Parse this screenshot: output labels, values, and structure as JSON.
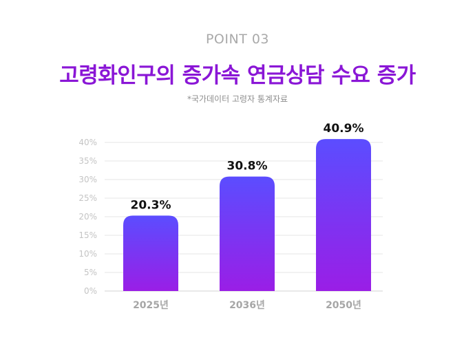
{
  "header": {
    "eyebrow": "POINT 03",
    "title": "고령화인구의 증가속 연금상담 수요 증가",
    "source": "*국가데이터 고령자 통계자료"
  },
  "colors": {
    "bar_top": "#5b4dff",
    "bar_bottom": "#9a1ee6",
    "title": "#8a16d6"
  },
  "chart_data": {
    "type": "bar",
    "title": "",
    "xlabel": "",
    "ylabel": "",
    "categories": [
      "2025년",
      "2036년",
      "2050년"
    ],
    "values": [
      20.3,
      30.8,
      40.9
    ],
    "value_labels": [
      "20.3%",
      "30.8%",
      "40.9%"
    ],
    "ylim": [
      0,
      40
    ],
    "yticks": [
      "0%",
      "5%",
      "10%",
      "15%",
      "20%",
      "25%",
      "30%",
      "35%",
      "40%"
    ],
    "grid": true,
    "legend": "none"
  }
}
